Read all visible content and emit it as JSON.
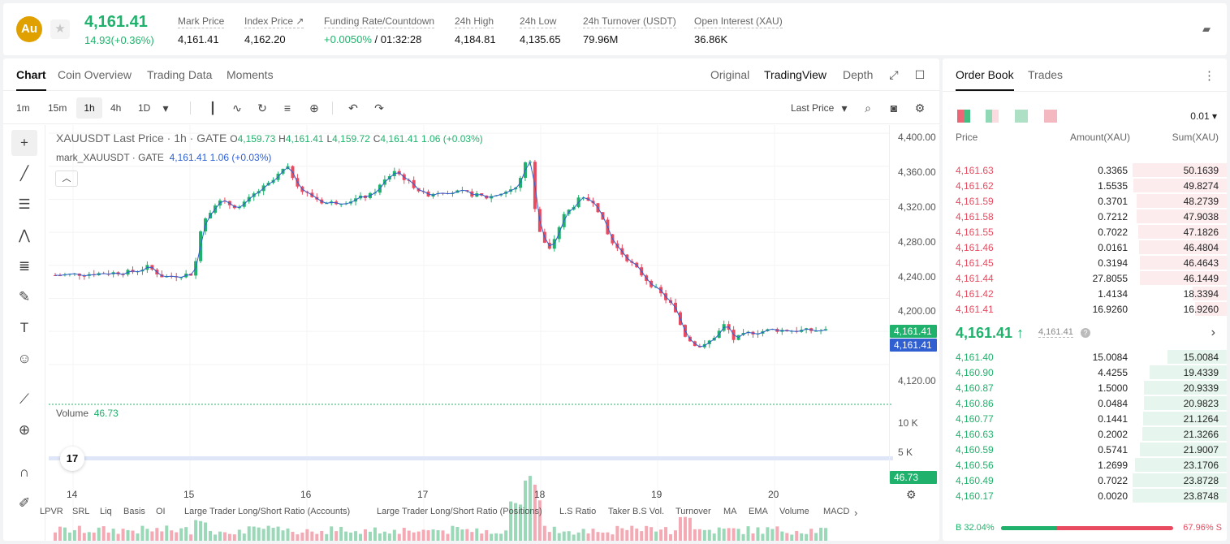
{
  "header": {
    "symbol_logo": "Au",
    "last_price": "4,161.41",
    "change": "14.93(+0.36%)",
    "stats": [
      {
        "label": "Mark Price",
        "value": "4,161.41"
      },
      {
        "label": "Index Price ↗",
        "value": "4,162.20"
      },
      {
        "label": "Funding Rate/Countdown",
        "value_green": "+0.0050%",
        "value": " / 01:32:28"
      },
      {
        "label": "24h High",
        "value": "4,184.81"
      },
      {
        "label": "24h Low",
        "value": "4,135.65"
      },
      {
        "label": "24h Turnover (USDT)",
        "value": "79.96M"
      },
      {
        "label": "Open Interest (XAU)",
        "value": "36.86K"
      }
    ]
  },
  "chart_tabs": [
    "Chart",
    "Coin Overview",
    "Trading Data",
    "Moments"
  ],
  "view_tabs": [
    "Original",
    "TradingView",
    "Depth"
  ],
  "toolbar": {
    "timeframes": [
      "1m",
      "15m",
      "1h",
      "4h",
      "1D"
    ],
    "price_mode": "Last Price"
  },
  "legend": {
    "title": "XAUUSDT Last Price · 1h · GATE",
    "o_label": "O",
    "o": "4,159.73",
    "h_label": "H",
    "h": "4,161.41",
    "l_label": "L",
    "l": "4,159.72",
    "c_label": "C",
    "c": "4,161.41",
    "chg": "1.06 (+0.03%)",
    "mark_label": "mark_XAUUSDT · GATE",
    "mark_val": "4,161.41",
    "mark_chg": "1.06 (+0.03%)",
    "volume_label": "Volume",
    "volume_val": "46.73"
  },
  "price_axis": {
    "labels": [
      "4,400.00",
      "4,360.00",
      "4,320.00",
      "4,280.00",
      "4,240.00",
      "4,200.00",
      "4,160.00",
      "4,120.00"
    ],
    "last_tag": "4,161.41",
    "mark_tag": "4,161.41",
    "vol_labels": [
      "10 K",
      "5 K"
    ],
    "vol_tag": "46.73"
  },
  "dates": [
    "14",
    "15",
    "16",
    "17",
    "18",
    "19",
    "20"
  ],
  "indicators": [
    "LPVR",
    "SRL",
    "Liq",
    "Basis",
    "OI",
    "Large Trader Long/Short Ratio (Accounts)",
    "Large Trader Long/Short Ratio (Positions)",
    "L.S Ratio",
    "Taker B.S Vol.",
    "Turnover",
    "MA",
    "EMA",
    "Volume",
    "MACD"
  ],
  "tv_logo": "17",
  "orderbook": {
    "tabs": [
      "Order Book",
      "Trades"
    ],
    "tick": "0.01 ▾",
    "columns": [
      "Price",
      "Amount(XAU)",
      "Sum(XAU)"
    ],
    "asks": [
      {
        "p": "4,161.63",
        "a": "0.3365",
        "s": "50.1639",
        "f": 1.0
      },
      {
        "p": "4,161.62",
        "a": "1.5535",
        "s": "49.8274",
        "f": 0.99
      },
      {
        "p": "4,161.59",
        "a": "0.3701",
        "s": "48.2739",
        "f": 0.96
      },
      {
        "p": "4,161.58",
        "a": "0.7212",
        "s": "47.9038",
        "f": 0.955
      },
      {
        "p": "4,161.55",
        "a": "0.7022",
        "s": "47.1826",
        "f": 0.94
      },
      {
        "p": "4,161.46",
        "a": "0.0161",
        "s": "46.4804",
        "f": 0.927
      },
      {
        "p": "4,161.45",
        "a": "0.3194",
        "s": "46.4643",
        "f": 0.926
      },
      {
        "p": "4,161.44",
        "a": "27.8055",
        "s": "46.1449",
        "f": 0.92
      },
      {
        "p": "4,161.42",
        "a": "1.4134",
        "s": "18.3394",
        "f": 0.366
      },
      {
        "p": "4,161.41",
        "a": "16.9260",
        "s": "16.9260",
        "f": 0.337
      }
    ],
    "mid": {
      "price": "4,161.41 ↑",
      "mark": "4,161.41"
    },
    "bids": [
      {
        "p": "4,161.40",
        "a": "15.0084",
        "s": "15.0084",
        "f": 0.63
      },
      {
        "p": "4,160.90",
        "a": "4.4255",
        "s": "19.4339",
        "f": 0.82
      },
      {
        "p": "4,160.87",
        "a": "1.5000",
        "s": "20.9339",
        "f": 0.88
      },
      {
        "p": "4,160.86",
        "a": "0.0484",
        "s": "20.9823",
        "f": 0.88
      },
      {
        "p": "4,160.77",
        "a": "0.1441",
        "s": "21.1264",
        "f": 0.89
      },
      {
        "p": "4,160.63",
        "a": "0.2002",
        "s": "21.3266",
        "f": 0.9
      },
      {
        "p": "4,160.59",
        "a": "0.5741",
        "s": "21.9007",
        "f": 0.92
      },
      {
        "p": "4,160.56",
        "a": "1.2699",
        "s": "23.1706",
        "f": 0.975
      },
      {
        "p": "4,160.49",
        "a": "0.7022",
        "s": "23.8728",
        "f": 1.0
      },
      {
        "p": "4,160.17",
        "a": "0.0020",
        "s": "23.8748",
        "f": 1.0
      }
    ],
    "buy_label": "B 32.04%",
    "sell_label": "67.96% S",
    "buy_ratio": 0.3204
  },
  "colors": {
    "up": "#20b26c",
    "down": "#e84a5f",
    "mark": "#2f5fd0"
  },
  "chart_data": {
    "type": "candlestick",
    "title": "XAUUSDT Last Price · 1h · GATE",
    "x": [
      "14",
      "15",
      "16",
      "17",
      "18",
      "19",
      "20"
    ],
    "ylim": [
      4110,
      4405
    ],
    "anchors": [
      [
        0,
        4228
      ],
      [
        0.05,
        4230
      ],
      [
        0.1,
        4232
      ],
      [
        0.12,
        4238
      ],
      [
        0.14,
        4226
      ],
      [
        0.18,
        4230
      ],
      [
        0.19,
        4292
      ],
      [
        0.21,
        4318
      ],
      [
        0.24,
        4310
      ],
      [
        0.26,
        4328
      ],
      [
        0.28,
        4340
      ],
      [
        0.3,
        4360
      ],
      [
        0.32,
        4330
      ],
      [
        0.35,
        4315
      ],
      [
        0.38,
        4318
      ],
      [
        0.41,
        4325
      ],
      [
        0.44,
        4355
      ],
      [
        0.46,
        4340
      ],
      [
        0.48,
        4325
      ],
      [
        0.5,
        4330
      ],
      [
        0.53,
        4328
      ],
      [
        0.56,
        4322
      ],
      [
        0.58,
        4328
      ],
      [
        0.6,
        4335
      ],
      [
        0.615,
        4380
      ],
      [
        0.625,
        4290
      ],
      [
        0.64,
        4255
      ],
      [
        0.66,
        4300
      ],
      [
        0.68,
        4320
      ],
      [
        0.7,
        4318
      ],
      [
        0.72,
        4270
      ],
      [
        0.74,
        4250
      ],
      [
        0.77,
        4220
      ],
      [
        0.8,
        4192
      ],
      [
        0.82,
        4150
      ],
      [
        0.84,
        4140
      ],
      [
        0.86,
        4158
      ],
      [
        0.87,
        4170
      ],
      [
        0.88,
        4150
      ],
      [
        0.9,
        4158
      ],
      [
        0.93,
        4162
      ],
      [
        0.96,
        4161
      ]
    ],
    "volume_peaks": [
      [
        0.19,
        4.0
      ],
      [
        0.6,
        7.0
      ],
      [
        0.615,
        13.0
      ],
      [
        0.62,
        8.0
      ],
      [
        0.82,
        5.0
      ]
    ]
  }
}
